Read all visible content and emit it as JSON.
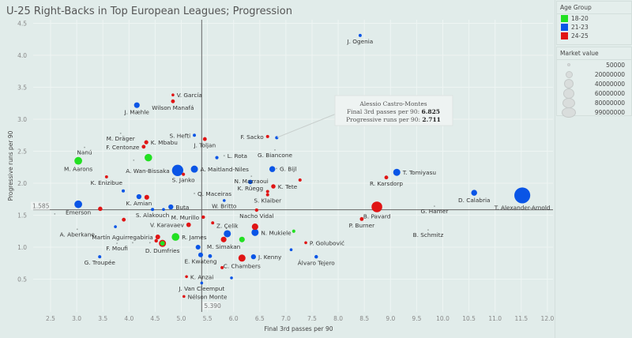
{
  "title": "U-25 Right-Backs in Top European Leagues; Progression",
  "legend": {
    "age_title": "Age Group",
    "age_groups": [
      {
        "label": "18-20",
        "color": "#22e022"
      },
      {
        "label": "21-23",
        "color": "#0a55e6"
      },
      {
        "label": "24-25",
        "color": "#e01515"
      }
    ],
    "mv_title": "Market value",
    "mv_items": [
      "50000",
      "20000000",
      "40000000",
      "60000000",
      "80000000",
      "99000000"
    ]
  },
  "tooltip": {
    "name": "Alessio Castro-Montes",
    "line1_label": "Final 3rd passes per 90:",
    "line1_value": "6.825",
    "line2_label": "Progressive runs per 90:",
    "line2_value": "2.711"
  },
  "chart_data": {
    "type": "scatter",
    "title": "U-25 Right-Backs in Top European Leagues; Progression",
    "xlabel": "Final 3rd passes per 90",
    "ylabel": "Progressive runs per 90",
    "xlim": [
      2.1,
      12.1
    ],
    "ylim": [
      0.0,
      4.6
    ],
    "xticks": [
      "2.5",
      "3.0",
      "3.5",
      "4.0",
      "4.5",
      "5.0",
      "5.5",
      "6.0",
      "6.5",
      "7.0",
      "7.5",
      "8.0",
      "8.5",
      "9.0",
      "9.5",
      "10.0",
      "10.5",
      "11.0",
      "11.5",
      "12.0"
    ],
    "yticks": [
      "0.5",
      "1.0",
      "1.5",
      "2.0",
      "2.5",
      "3.0",
      "3.5",
      "4.0",
      "4.5"
    ],
    "grid": true,
    "reference_lines": {
      "x": 5.39,
      "x_label": "5.390",
      "y": 1.585,
      "y_label": "1.585"
    },
    "size_encoding": "Market value",
    "color_encoding": "Age Group",
    "points": [
      {
        "name": "J. Ogenia",
        "x": 8.42,
        "y": 4.31,
        "age": "21-23",
        "mv": 500000,
        "pos": "below"
      },
      {
        "name": "V. García",
        "x": 4.84,
        "y": 3.38,
        "age": "24-25",
        "mv": 300000,
        "pos": "right"
      },
      {
        "name": "Wilson Manafá",
        "x": 4.84,
        "y": 3.28,
        "age": "24-25",
        "mv": 1500000,
        "pos": "below"
      },
      {
        "name": "J. Mæhle",
        "x": 4.15,
        "y": 3.22,
        "age": "21-23",
        "mv": 6000000,
        "pos": "below"
      },
      {
        "name": "S. Hefti",
        "x": 5.25,
        "y": 2.75,
        "age": "21-23",
        "mv": 500000,
        "pos": "left"
      },
      {
        "name": "J. Toljan",
        "x": 5.45,
        "y": 2.69,
        "age": "24-25",
        "mv": 1500000,
        "pos": "below"
      },
      {
        "name": "M. Dräger",
        "x": 3.84,
        "y": 2.78,
        "age": "21-23",
        "mv": 50000,
        "pos": "below"
      },
      {
        "name": "K. Mbabu",
        "x": 4.33,
        "y": 2.64,
        "age": "24-25",
        "mv": 2000000,
        "pos": "right"
      },
      {
        "name": "F. Centonze",
        "x": 4.28,
        "y": 2.57,
        "age": "24-25",
        "mv": 1500000,
        "pos": "left"
      },
      {
        "name": "F. Sacko",
        "x": 6.65,
        "y": 2.73,
        "age": "24-25",
        "mv": 600000,
        "pos": "left"
      },
      {
        "name": "Alessio Castro-Montes",
        "x": 6.825,
        "y": 2.711,
        "age": "21-23",
        "mv": 600000,
        "pos": "none"
      },
      {
        "name": "Nanú",
        "x": 3.15,
        "y": 2.56,
        "age": "24-25",
        "mv": 50000,
        "pos": "below"
      },
      {
        "name": "M. Aarons",
        "x": 3.03,
        "y": 2.35,
        "age": "18-20",
        "mv": 15000000,
        "pos": "below"
      },
      {
        "name": "",
        "x": 4.37,
        "y": 2.4,
        "age": "18-20",
        "mv": 14000000,
        "pos": "none"
      },
      {
        "name": "",
        "x": 4.09,
        "y": 2.36,
        "age": "24-25",
        "mv": 50000,
        "pos": "none"
      },
      {
        "name": "",
        "x": 5.68,
        "y": 2.4,
        "age": "21-23",
        "mv": 700000,
        "pos": "none"
      },
      {
        "name": "L. Rota",
        "x": 5.82,
        "y": 2.43,
        "age": "21-23",
        "mv": 50000,
        "pos": "right"
      },
      {
        "name": "G. Biancone",
        "x": 6.79,
        "y": 2.52,
        "age": "18-20",
        "mv": 50000,
        "pos": "below"
      },
      {
        "name": "A. Wan-Bissaka",
        "x": 4.93,
        "y": 2.2,
        "age": "21-23",
        "mv": 40000000,
        "pos": "left"
      },
      {
        "name": "A. Maitland-Niles",
        "x": 5.25,
        "y": 2.22,
        "age": "21-23",
        "mv": 12000000,
        "pos": "right"
      },
      {
        "name": "S. Janko",
        "x": 5.04,
        "y": 2.14,
        "age": "24-25",
        "mv": 700000,
        "pos": "below"
      },
      {
        "name": "",
        "x": 6.74,
        "y": 2.22,
        "age": "21-23",
        "mv": 7000000,
        "pos": "none"
      },
      {
        "name": "G. Bijl",
        "x": 6.82,
        "y": 2.23,
        "age": "18-20",
        "mv": 50000,
        "pos": "right"
      },
      {
        "name": "N. Mazraoui",
        "x": 6.34,
        "y": 2.11,
        "age": "18-20",
        "mv": 50000,
        "pos": "below"
      },
      {
        "name": "K. Rüegg",
        "x": 6.32,
        "y": 2.02,
        "age": "21-23",
        "mv": 2500000,
        "pos": "below"
      },
      {
        "name": "K. Tete",
        "x": 6.76,
        "y": 1.95,
        "age": "24-25",
        "mv": 2500000,
        "pos": "right"
      },
      {
        "name": "",
        "x": 7.27,
        "y": 2.05,
        "age": "24-25",
        "mv": 700000,
        "pos": "none"
      },
      {
        "name": "",
        "x": 6.65,
        "y": 1.87,
        "age": "24-25",
        "mv": 600000,
        "pos": "none"
      },
      {
        "name": "S. Klaiber",
        "x": 6.65,
        "y": 1.82,
        "age": "24-25",
        "mv": 600000,
        "pos": "below"
      },
      {
        "name": "K. Enizibue",
        "x": 3.57,
        "y": 2.1,
        "age": "24-25",
        "mv": 500000,
        "pos": "below"
      },
      {
        "name": "T. Tomiyasu",
        "x": 9.12,
        "y": 2.17,
        "age": "21-23",
        "mv": 12000000,
        "pos": "right"
      },
      {
        "name": "R. Karsdorp",
        "x": 8.92,
        "y": 2.09,
        "age": "24-25",
        "mv": 1500000,
        "pos": "below"
      },
      {
        "name": "D. Calabria",
        "x": 10.6,
        "y": 1.85,
        "age": "21-23",
        "mv": 7000000,
        "pos": "below"
      },
      {
        "name": "T. Alexander-Arnold",
        "x": 11.52,
        "y": 1.81,
        "age": "21-23",
        "mv": 90000000,
        "pos": "below"
      },
      {
        "name": "Q. Maceiras",
        "x": 5.25,
        "y": 1.84,
        "age": "24-25",
        "mv": 50000,
        "pos": "right"
      },
      {
        "name": "",
        "x": 3.89,
        "y": 1.88,
        "age": "21-23",
        "mv": 600000,
        "pos": "none"
      },
      {
        "name": "K. Amian",
        "x": 4.19,
        "y": 1.79,
        "age": "21-23",
        "mv": 4000000,
        "pos": "below"
      },
      {
        "name": "",
        "x": 4.34,
        "y": 1.78,
        "age": "24-25",
        "mv": 3500000,
        "pos": "none"
      },
      {
        "name": "W. Britto",
        "x": 5.82,
        "y": 1.73,
        "age": "21-23",
        "mv": 300000,
        "pos": "below"
      },
      {
        "name": "Emerson",
        "x": 3.03,
        "y": 1.67,
        "age": "21-23",
        "mv": 15000000,
        "pos": "below"
      },
      {
        "name": "",
        "x": 3.45,
        "y": 1.6,
        "age": "24-25",
        "mv": 2500000,
        "pos": "none"
      },
      {
        "name": "Buta",
        "x": 4.8,
        "y": 1.63,
        "age": "21-23",
        "mv": 4000000,
        "pos": "right"
      },
      {
        "name": "S. Alakouch",
        "x": 4.45,
        "y": 1.59,
        "age": "21-23",
        "mv": 600000,
        "pos": "below"
      },
      {
        "name": "",
        "x": 4.66,
        "y": 1.59,
        "age": "21-23",
        "mv": 300000,
        "pos": "none"
      },
      {
        "name": "B. Pavard",
        "x": 8.74,
        "y": 1.63,
        "age": "24-25",
        "mv": 35000000,
        "pos": "below"
      },
      {
        "name": "G. Hamer",
        "x": 9.84,
        "y": 1.64,
        "age": "21-23",
        "mv": 50000,
        "pos": "below"
      },
      {
        "name": "",
        "x": 2.58,
        "y": 1.52,
        "age": "24-25",
        "mv": 50000,
        "pos": "none"
      },
      {
        "name": "M. Murillo",
        "x": 5.42,
        "y": 1.47,
        "age": "24-25",
        "mv": 1000000,
        "pos": "left"
      },
      {
        "name": "Nacho Vidal",
        "x": 6.44,
        "y": 1.58,
        "age": "24-25",
        "mv": 900000,
        "pos": "below"
      },
      {
        "name": "P. Burner",
        "x": 8.45,
        "y": 1.44,
        "age": "24-25",
        "mv": 1500000,
        "pos": "below"
      },
      {
        "name": "",
        "x": 3.9,
        "y": 1.43,
        "age": "24-25",
        "mv": 1500000,
        "pos": "none"
      },
      {
        "name": "",
        "x": 5.6,
        "y": 1.38,
        "age": "24-25",
        "mv": 500000,
        "pos": "none"
      },
      {
        "name": "V. Karavaev",
        "x": 5.14,
        "y": 1.35,
        "age": "24-25",
        "mv": 3000000,
        "pos": "left"
      },
      {
        "name": "Z. Çelik",
        "x": 5.88,
        "y": 1.21,
        "age": "21-23",
        "mv": 12000000,
        "pos": "above"
      },
      {
        "name": "",
        "x": 6.41,
        "y": 1.32,
        "age": "24-25",
        "mv": 9000000,
        "pos": "none"
      },
      {
        "name": "N. Mukiele",
        "x": 6.41,
        "y": 1.23,
        "age": "21-23",
        "mv": 12000000,
        "pos": "right"
      },
      {
        "name": "",
        "x": 7.15,
        "y": 1.25,
        "age": "18-20",
        "mv": 700000,
        "pos": "none"
      },
      {
        "name": "A. Aberkane",
        "x": 3.01,
        "y": 1.28,
        "age": "18-20",
        "mv": 50000,
        "pos": "below"
      },
      {
        "name": "",
        "x": 3.74,
        "y": 1.32,
        "age": "21-23",
        "mv": 300000,
        "pos": "none"
      },
      {
        "name": "Martín Aguirregabiria",
        "x": 4.55,
        "y": 1.16,
        "age": "24-25",
        "mv": 3500000,
        "pos": "left"
      },
      {
        "name": "",
        "x": 4.52,
        "y": 1.1,
        "age": "24-25",
        "mv": 1000000,
        "pos": "none"
      },
      {
        "name": "R. James",
        "x": 4.89,
        "y": 1.16,
        "age": "18-20",
        "mv": 15000000,
        "pos": "right"
      },
      {
        "name": "D. Dumfries",
        "x": 4.64,
        "y": 1.06,
        "age": "18-20",
        "mv": 7000000,
        "pos": "below",
        "ring": "#e01515"
      },
      {
        "name": "F. Moufi",
        "x": 3.77,
        "y": 1.06,
        "age": "24-25",
        "mv": 50000,
        "pos": "below"
      },
      {
        "name": "",
        "x": 4.07,
        "y": 1.07,
        "age": "24-25",
        "mv": 50000,
        "pos": "none"
      },
      {
        "name": "",
        "x": 4.4,
        "y": 1.07,
        "age": "24-25",
        "mv": 50000,
        "pos": "none"
      },
      {
        "name": "M. Simakan",
        "x": 5.81,
        "y": 1.12,
        "age": "24-25",
        "mv": 6000000,
        "pos": "below"
      },
      {
        "name": "",
        "x": 6.16,
        "y": 1.12,
        "age": "18-20",
        "mv": 6000000,
        "pos": "none"
      },
      {
        "name": "P. Golubović",
        "x": 7.38,
        "y": 1.07,
        "age": "24-25",
        "mv": 300000,
        "pos": "right"
      },
      {
        "name": "",
        "x": 5.32,
        "y": 1.0,
        "age": "21-23",
        "mv": 3500000,
        "pos": "none"
      },
      {
        "name": "",
        "x": 7.1,
        "y": 0.96,
        "age": "21-23",
        "mv": 300000,
        "pos": "none"
      },
      {
        "name": "E. Kwateng",
        "x": 5.37,
        "y": 0.88,
        "age": "21-23",
        "mv": 3500000,
        "pos": "below"
      },
      {
        "name": "",
        "x": 5.55,
        "y": 0.86,
        "age": "21-23",
        "mv": 1500000,
        "pos": "none"
      },
      {
        "name": "C. Chambers",
        "x": 6.16,
        "y": 0.83,
        "age": "24-25",
        "mv": 12000000,
        "pos": "below"
      },
      {
        "name": "",
        "x": 5.78,
        "y": 0.68,
        "age": "24-25",
        "mv": 600000,
        "pos": "none"
      },
      {
        "name": "J. Kenny",
        "x": 6.38,
        "y": 0.85,
        "age": "21-23",
        "mv": 4000000,
        "pos": "right"
      },
      {
        "name": "Álvaro Tejero",
        "x": 7.58,
        "y": 0.85,
        "age": "21-23",
        "mv": 1000000,
        "pos": "below"
      },
      {
        "name": "G. Troupée",
        "x": 3.44,
        "y": 0.85,
        "age": "21-23",
        "mv": 600000,
        "pos": "below"
      },
      {
        "name": "K. Anzai",
        "x": 5.1,
        "y": 0.54,
        "age": "24-25",
        "mv": 300000,
        "pos": "right"
      },
      {
        "name": "",
        "x": 5.96,
        "y": 0.52,
        "age": "21-23",
        "mv": 300000,
        "pos": "none"
      },
      {
        "name": "J. Van Cleemput",
        "x": 5.39,
        "y": 0.44,
        "age": "21-23",
        "mv": 300000,
        "pos": "below"
      },
      {
        "name": "Nélson Monte",
        "x": 5.05,
        "y": 0.23,
        "age": "24-25",
        "mv": 300000,
        "pos": "right"
      },
      {
        "name": "B. Schmitz",
        "x": 9.72,
        "y": 1.27,
        "age": "21-23",
        "mv": 50000,
        "pos": "below"
      }
    ]
  }
}
